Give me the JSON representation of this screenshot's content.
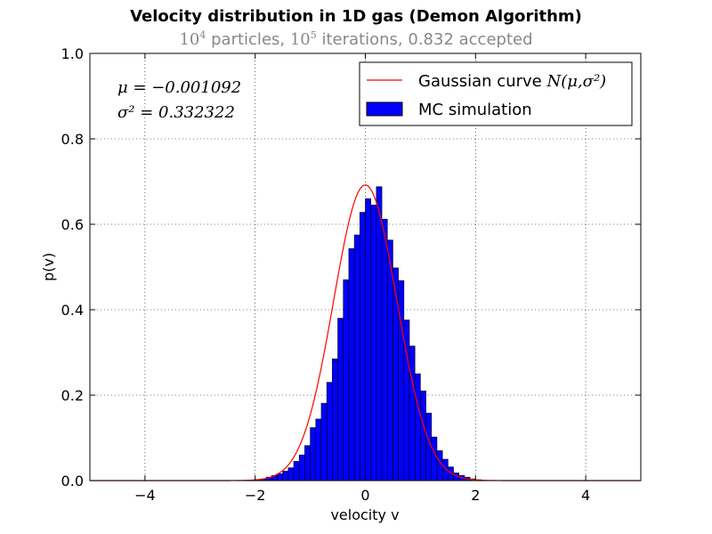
{
  "chart_data": {
    "type": "bar",
    "title": "Velocity distribution in 1D gas (Demon Algorithm)",
    "subtitle": {
      "particles_base": "10",
      "particles_exp": "4",
      "particles_label": "particles,",
      "iterations_base": "10",
      "iterations_exp": "5",
      "iterations_label": "iterations, 0.832 accepted"
    },
    "xlabel": "velocity v",
    "ylabel": "p(v)",
    "xlim": [
      -5,
      5
    ],
    "ylim": [
      0,
      1.0
    ],
    "xticks": [
      -4,
      -2,
      0,
      2,
      4
    ],
    "xtick_labels": [
      "−4",
      "−2",
      "0",
      "2",
      "4"
    ],
    "yticks": [
      0,
      0.2,
      0.4,
      0.6,
      0.8,
      1.0
    ],
    "ytick_labels": [
      "0.0",
      "0.2",
      "0.4",
      "0.6",
      "0.8",
      "1.0"
    ],
    "grid": true,
    "legend_position": "top-right",
    "series": [
      {
        "name": "Gaussian curve",
        "name_math": "N(μ,σ²)",
        "type": "line",
        "color": "#ff0000",
        "mu": -0.001092,
        "sigma2": 0.332322
      },
      {
        "name": "MC simulation",
        "type": "histogram",
        "color": "#0000ff",
        "edge_color": "#000000",
        "bin_width": 0.1,
        "bins": [
          {
            "x": -2.1,
            "y": 0.001
          },
          {
            "x": -2.0,
            "y": 0.002
          },
          {
            "x": -1.9,
            "y": 0.004
          },
          {
            "x": -1.8,
            "y": 0.008
          },
          {
            "x": -1.7,
            "y": 0.012
          },
          {
            "x": -1.6,
            "y": 0.016
          },
          {
            "x": -1.5,
            "y": 0.022
          },
          {
            "x": -1.4,
            "y": 0.03
          },
          {
            "x": -1.3,
            "y": 0.045
          },
          {
            "x": -1.2,
            "y": 0.06
          },
          {
            "x": -1.1,
            "y": 0.082
          },
          {
            "x": -1.0,
            "y": 0.124
          },
          {
            "x": -0.9,
            "y": 0.144
          },
          {
            "x": -0.8,
            "y": 0.181
          },
          {
            "x": -0.7,
            "y": 0.23
          },
          {
            "x": -0.6,
            "y": 0.285
          },
          {
            "x": -0.5,
            "y": 0.38
          },
          {
            "x": -0.4,
            "y": 0.47
          },
          {
            "x": -0.3,
            "y": 0.543
          },
          {
            "x": -0.2,
            "y": 0.575
          },
          {
            "x": -0.1,
            "y": 0.628
          },
          {
            "x": 0.0,
            "y": 0.66
          },
          {
            "x": 0.1,
            "y": 0.645
          },
          {
            "x": 0.2,
            "y": 0.688
          },
          {
            "x": 0.3,
            "y": 0.612
          },
          {
            "x": 0.4,
            "y": 0.563
          },
          {
            "x": 0.5,
            "y": 0.498
          },
          {
            "x": 0.6,
            "y": 0.468
          },
          {
            "x": 0.7,
            "y": 0.376
          },
          {
            "x": 0.8,
            "y": 0.315
          },
          {
            "x": 0.9,
            "y": 0.25
          },
          {
            "x": 1.0,
            "y": 0.21
          },
          {
            "x": 1.1,
            "y": 0.158
          },
          {
            "x": 1.2,
            "y": 0.102
          },
          {
            "x": 1.3,
            "y": 0.07
          },
          {
            "x": 1.4,
            "y": 0.05
          },
          {
            "x": 1.5,
            "y": 0.032
          },
          {
            "x": 1.6,
            "y": 0.018
          },
          {
            "x": 1.7,
            "y": 0.012
          },
          {
            "x": 1.8,
            "y": 0.008
          },
          {
            "x": 1.9,
            "y": 0.004
          },
          {
            "x": 2.0,
            "y": 0.002
          }
        ]
      }
    ],
    "annotations": [
      "μ = −0.001092",
      "σ² = 0.332322"
    ]
  }
}
